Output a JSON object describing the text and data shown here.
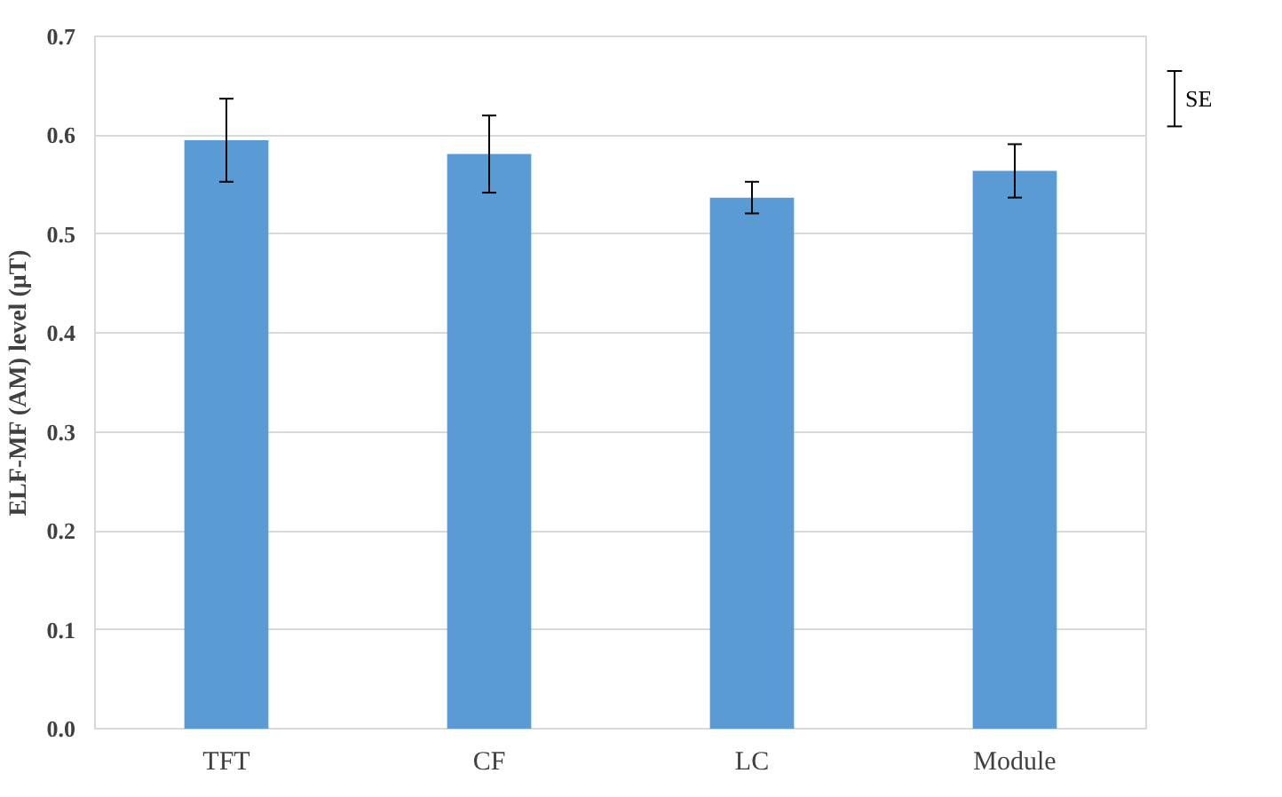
{
  "chart_data": {
    "type": "bar",
    "ylabel": "ELF-MF (AM) level (μT)",
    "categories": [
      "TFT",
      "CF",
      "LC",
      "Module"
    ],
    "values": [
      0.595,
      0.581,
      0.537,
      0.564
    ],
    "errors": [
      0.042,
      0.039,
      0.016,
      0.027
    ],
    "color": "#5b9bd5",
    "ylim": [
      0,
      0.7
    ],
    "yticks": [
      {
        "value": 0,
        "label": "0.0"
      },
      0.1,
      0.2,
      0.3,
      0.4,
      0.5,
      0.6,
      0.7
    ],
    "grid": "y",
    "annotations": [
      "SE"
    ]
  }
}
